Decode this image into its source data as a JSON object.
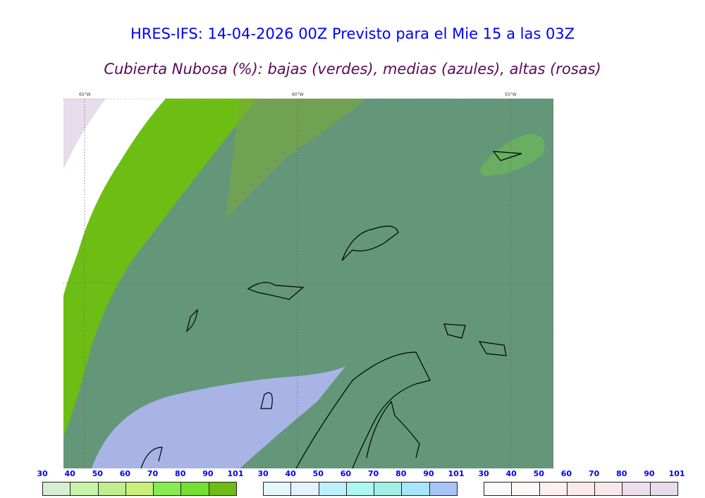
{
  "title": "HRES-IFS: 14-04-2026 00Z Previsto para el Mie 15 a las 03Z",
  "subtitle": "Cubierta Nubosa (%): bajas (verdes), medias (azules), altas (rosas)",
  "map": {
    "longitudes": [
      "65°W",
      "60°W",
      "55°W"
    ],
    "background": "#64967a"
  },
  "colorbars": [
    {
      "name": "bajas",
      "ticks": [
        "30",
        "40",
        "50",
        "60",
        "70",
        "80",
        "90",
        "101"
      ],
      "colors": [
        "#d4f0d0",
        "#c8f4a8",
        "#c0ee8c",
        "#c8f07a",
        "#88ec50",
        "#72e030",
        "#6cbe14"
      ]
    },
    {
      "name": "medias",
      "ticks": [
        "30",
        "40",
        "50",
        "60",
        "70",
        "80",
        "90",
        "101"
      ],
      "colors": [
        "#e4f8fa",
        "#e6f2fb",
        "#bcf0fa",
        "#aef6f2",
        "#a0f0e4",
        "#a8e4fa",
        "#a8c4f6"
      ]
    },
    {
      "name": "altas",
      "ticks": [
        "30",
        "40",
        "50",
        "60",
        "70",
        "80",
        "90",
        "101"
      ],
      "colors": [
        "#fbfafa",
        "#fcf8f8",
        "#fdf0f0",
        "#fae8ec",
        "#f8e8ec",
        "#ecdeea",
        "#e6dcea"
      ]
    }
  ]
}
